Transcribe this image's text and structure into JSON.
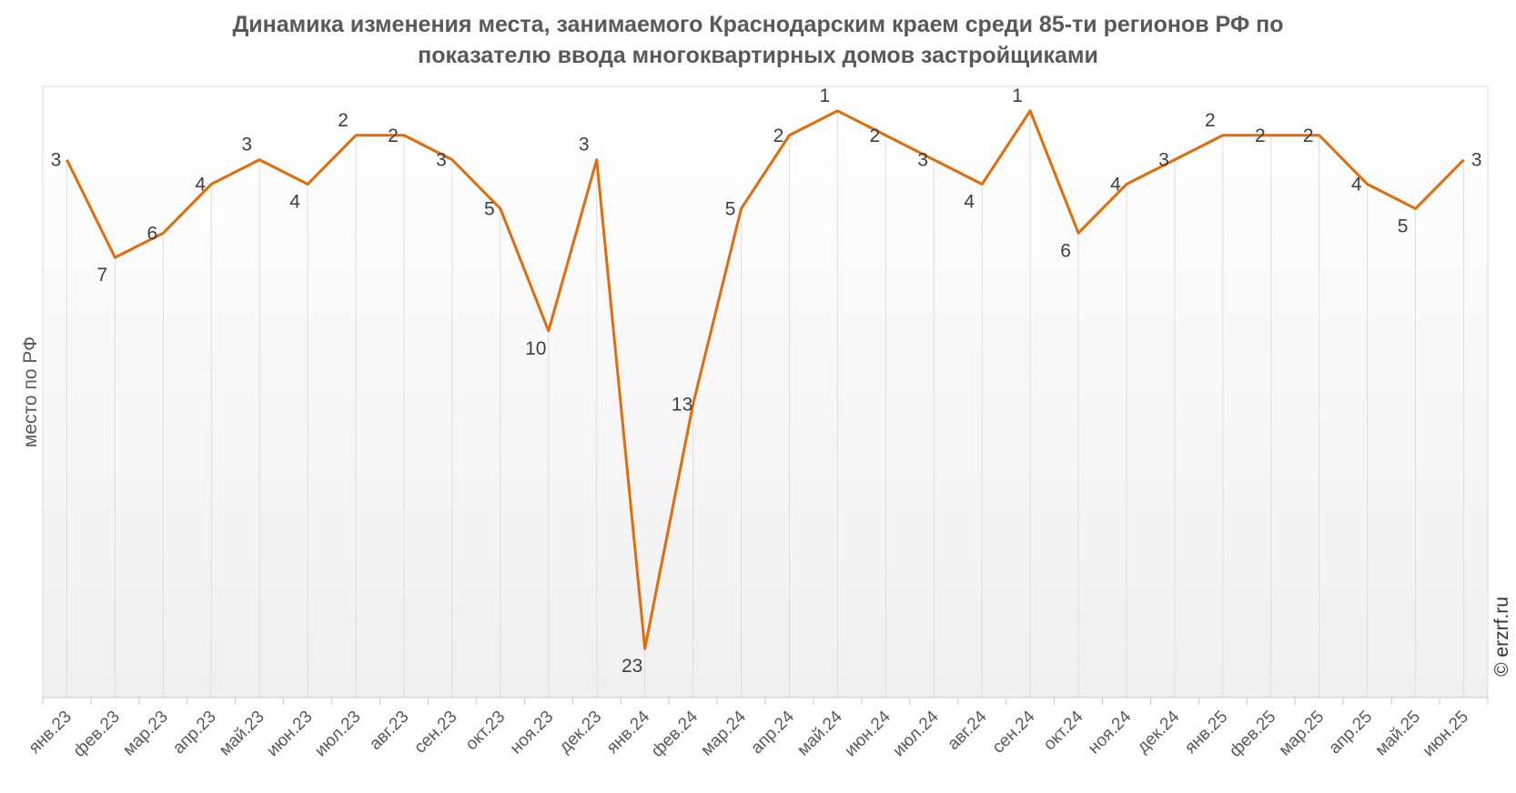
{
  "chart_data": {
    "type": "line",
    "title_lines": [
      "Динамика изменения места, занимаемого Краснодарским краем среди 85-ти регионов РФ по",
      "показателю ввода многоквартирных домов застройщиками"
    ],
    "xlabel": "",
    "ylabel": "место по РФ",
    "y_inverted": true,
    "ylim": [
      0,
      25
    ],
    "grid": "vertical drop lines",
    "categories": [
      "янв.23",
      "фев.23",
      "мар.23",
      "апр.23",
      "май.23",
      "июн.23",
      "июл.23",
      "авг.23",
      "сен.23",
      "окт.23",
      "ноя.23",
      "дек.23",
      "янв.24",
      "фев.24",
      "мар.24",
      "апр.24",
      "май.24",
      "июн.24",
      "июл.24",
      "авг.24",
      "сен.24",
      "окт.24",
      "ноя.24",
      "дек.24",
      "янв.25",
      "фев.25",
      "мар.25",
      "апр.25",
      "май.25",
      "июн.25"
    ],
    "values": [
      3,
      7,
      6,
      4,
      3,
      4,
      2,
      2,
      3,
      5,
      10,
      3,
      23,
      13,
      5,
      2,
      1,
      2,
      3,
      4,
      1,
      6,
      4,
      3,
      2,
      2,
      2,
      4,
      5,
      3
    ],
    "line_color": "#e36c0a"
  },
  "copyright": "© erzrf.ru"
}
